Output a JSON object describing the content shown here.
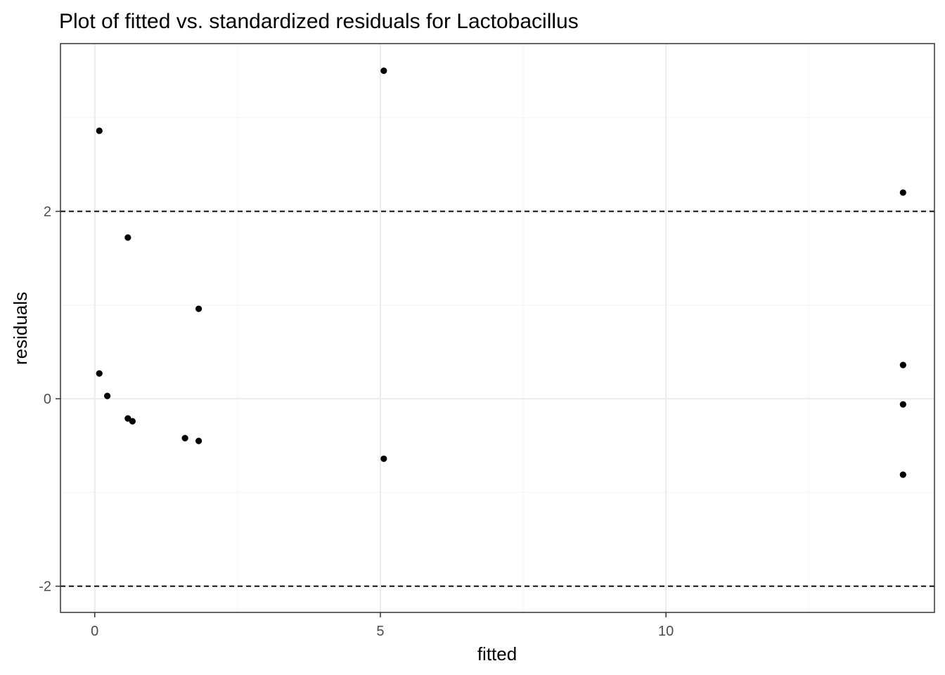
{
  "chart_data": {
    "type": "scatter",
    "title": "Plot of fitted vs. standardized residuals for Lactobacillus",
    "xlabel": "fitted",
    "ylabel": "residuals",
    "xlim": [
      -0.6,
      14.7
    ],
    "ylim": [
      -2.28,
      3.79
    ],
    "x_ticks": [
      0,
      5,
      10
    ],
    "x_tick_labels": [
      "0",
      "5",
      "10"
    ],
    "x_minor_ticks": [
      2.5,
      7.5,
      12.5
    ],
    "y_ticks": [
      -2,
      0,
      2
    ],
    "y_tick_labels": [
      "-2",
      "0",
      "2"
    ],
    "y_minor_ticks": [
      -1,
      1,
      3
    ],
    "grid": true,
    "reference_lines": [
      2,
      -2
    ],
    "points": [
      {
        "x": 0.08,
        "y": 2.86
      },
      {
        "x": 0.08,
        "y": 0.27
      },
      {
        "x": 0.22,
        "y": 0.03
      },
      {
        "x": 0.58,
        "y": 1.72
      },
      {
        "x": 0.58,
        "y": -0.21
      },
      {
        "x": 0.66,
        "y": -0.24
      },
      {
        "x": 1.58,
        "y": -0.42
      },
      {
        "x": 1.82,
        "y": 0.96
      },
      {
        "x": 1.82,
        "y": -0.45
      },
      {
        "x": 5.06,
        "y": 3.5
      },
      {
        "x": 5.06,
        "y": -0.64
      },
      {
        "x": 14.15,
        "y": 2.2
      },
      {
        "x": 14.15,
        "y": 0.36
      },
      {
        "x": 14.15,
        "y": -0.06
      },
      {
        "x": 14.15,
        "y": -0.81
      }
    ],
    "colors": {
      "points": "#000000",
      "grid_major": "#ebebeb",
      "grid_minor": "#f5f5f5",
      "panel_border": "#333333"
    }
  }
}
